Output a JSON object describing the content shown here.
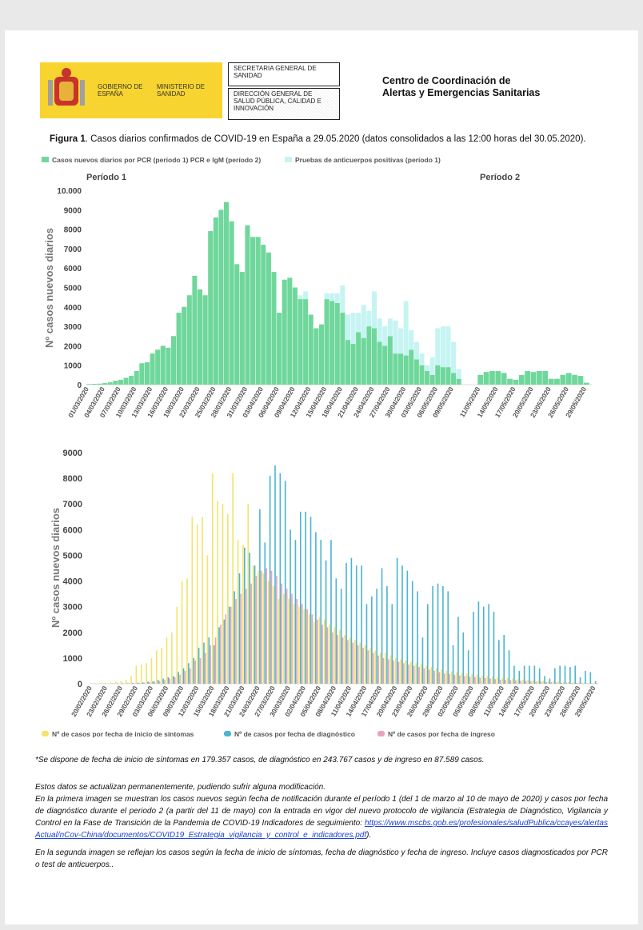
{
  "header": {
    "gov": "GOBIERNO DE ESPAÑA",
    "ministry": "MINISTERIO DE SANIDAD",
    "secretaria": "SECRETARIA GENERAL DE SANIDAD",
    "direccion": "DIRECCIÓN GENERAL DE SALUD PÚBLICA, CALIDAD E INNOVACIÓN",
    "centro": "Centro de Coordinación de Alertas y Emergencias Sanitarias"
  },
  "figure": {
    "label": "Figura 1",
    "caption": ". Casos diarios confirmados de COVID-19 en España a 29.05.2020 (datos consolidados a las 12:00 horas del 30.05.2020)."
  },
  "chart_data": [
    {
      "type": "bar",
      "stacked": true,
      "y_label": "Nº casos nuevos diarios",
      "ylim": [
        0,
        10000
      ],
      "yticks": [
        0,
        1000,
        2000,
        3000,
        4000,
        5000,
        6000,
        7000,
        8000,
        9000,
        {
          "value": 10000,
          "label": "10.000"
        }
      ],
      "periods": [
        {
          "label": "Período 1",
          "categories": [
            "01/03/2020",
            null,
            null,
            "04/03/2020",
            null,
            null,
            "07/03/2020",
            null,
            null,
            "10/03/2020",
            null,
            null,
            "13/03/2020",
            null,
            null,
            "16/03/2020",
            null,
            null,
            "19/03/2020",
            null,
            null,
            "22/03/2020",
            null,
            null,
            "25/03/2020",
            null,
            null,
            "28/03/2020",
            null,
            null,
            "31/03/2020",
            null,
            null,
            "03/04/2020",
            null,
            null,
            "06/04/2020",
            null,
            null,
            "09/04/2020",
            null,
            null,
            "12/04/2020",
            null,
            null,
            "15/04/2020",
            null,
            null,
            "18/04/2020",
            null,
            null,
            "21/04/2020",
            null,
            null,
            "24/04/2020",
            null,
            null,
            "27/04/2020",
            null,
            null,
            "30/04/2020",
            null,
            null,
            "03/05/2020",
            null,
            null,
            "06/05/2020",
            null,
            null,
            "09/05/2020",
            null
          ]
        },
        {
          "label": "Período 2",
          "categories": [
            "11/05/2020",
            null,
            null,
            "14/05/2020",
            null,
            null,
            "17/05/2020",
            null,
            null,
            "20/05/2020",
            null,
            null,
            "23/05/2020",
            null,
            null,
            "26/05/2020",
            null,
            null,
            "29/05/2020"
          ]
        }
      ],
      "series": [
        {
          "name": "Casos nuevos diarios por PCR (período 1) PCR e IgM (período 2)",
          "color": "#6fd79b",
          "values": [
            30,
            40,
            50,
            80,
            120,
            200,
            250,
            350,
            450,
            700,
            1100,
            1150,
            1600,
            1800,
            2000,
            1900,
            2500,
            3700,
            4000,
            4600,
            5600,
            4900,
            4600,
            7900,
            8600,
            9000,
            9400,
            8400,
            6200,
            5800,
            8200,
            7600,
            7600,
            7200,
            6800,
            5800,
            3700,
            5400,
            5500,
            5000,
            4400,
            4400,
            3600,
            2900,
            3100,
            4400,
            4300,
            4200,
            3700,
            2300,
            2100,
            2700,
            2400,
            3000,
            2900,
            2200,
            2000,
            2500,
            1600,
            1600,
            1500,
            1800,
            1300,
            1000,
            700,
            500,
            1000,
            900,
            900,
            600,
            300,
            500,
            650,
            700,
            700,
            600,
            300,
            250,
            500,
            700,
            650,
            700,
            700,
            300,
            300,
            500,
            600,
            500,
            450,
            100
          ]
        },
        {
          "name": "Pruebas de anticuerpos positivas (período 1)",
          "color": "#c6f4f3",
          "values": [
            0,
            0,
            0,
            0,
            0,
            0,
            0,
            0,
            0,
            0,
            0,
            0,
            0,
            0,
            0,
            0,
            0,
            0,
            0,
            0,
            0,
            0,
            0,
            0,
            0,
            0,
            0,
            0,
            0,
            0,
            0,
            0,
            0,
            0,
            0,
            0,
            0,
            0,
            0,
            0,
            200,
            400,
            0,
            0,
            0,
            300,
            400,
            500,
            1400,
            1300,
            1600,
            1000,
            1700,
            800,
            1900,
            1200,
            1000,
            900,
            1700,
            1300,
            2800,
            1000,
            900,
            600,
            300,
            900,
            1900,
            2100,
            2100,
            1600,
            500,
            0,
            0,
            0,
            0,
            0,
            0,
            0,
            0,
            0,
            0,
            0,
            0,
            0,
            0,
            0,
            0,
            0,
            0,
            0
          ]
        }
      ]
    },
    {
      "type": "bar",
      "stacked": false,
      "y_label": "Nº casos nuevos diarios",
      "ylim": [
        0,
        9000
      ],
      "yticks": [
        0,
        1000,
        2000,
        3000,
        4000,
        5000,
        6000,
        7000,
        8000,
        9000
      ],
      "categories": [
        "20/02/2020",
        null,
        null,
        "23/02/2020",
        null,
        null,
        "26/02/2020",
        null,
        null,
        "29/02/2020",
        null,
        null,
        "03/03/2020",
        null,
        null,
        "06/03/2020",
        null,
        null,
        "09/03/2020",
        null,
        null,
        "12/03/2020",
        null,
        null,
        "15/03/2020",
        null,
        null,
        "18/03/2020",
        null,
        null,
        "21/03/2020",
        null,
        null,
        "24/03/2020",
        null,
        null,
        "27/03/2020",
        null,
        null,
        "30/03/2020",
        null,
        null,
        "02/04/2020",
        null,
        null,
        "05/04/2020",
        null,
        null,
        "08/04/2020",
        null,
        null,
        "11/04/2020",
        null,
        null,
        "14/04/2020",
        null,
        null,
        "17/04/2020",
        null,
        null,
        "20/04/2020",
        null,
        null,
        "23/04/2020",
        null,
        null,
        "26/04/2020",
        null,
        null,
        "29/04/2020",
        null,
        null,
        "02/05/2020",
        null,
        null,
        "05/05/2020",
        null,
        null,
        "08/05/2020",
        null,
        null,
        "11/05/2020",
        null,
        null,
        "14/05/2020",
        null,
        null,
        "17/05/2020",
        null,
        null,
        "20/05/2020",
        null,
        null,
        "23/05/2020",
        null,
        null,
        "26/05/2020",
        null,
        null,
        "29/05/2020"
      ],
      "series": [
        {
          "name": "Nº de casos por fecha de inicio de síntomas",
          "color": "#f3e36b",
          "values": [
            20,
            20,
            30,
            40,
            50,
            80,
            100,
            150,
            300,
            700,
            750,
            800,
            1000,
            1300,
            1400,
            1800,
            2000,
            3000,
            4000,
            4100,
            6500,
            6200,
            6500,
            5000,
            8200,
            7100,
            7000,
            6600,
            8200,
            5600,
            5400,
            7000,
            4600,
            4400,
            4300,
            4000,
            3800,
            3300,
            3500,
            3300,
            3100,
            3000,
            2900,
            2700,
            2400,
            2600,
            2500,
            2300,
            2200,
            2100,
            1900,
            1800,
            1700,
            1600,
            1500,
            1400,
            1300,
            1200,
            1200,
            1100,
            1000,
            950,
            900,
            850,
            800,
            750,
            700,
            650,
            600,
            550,
            500,
            480,
            450,
            420,
            400,
            380,
            350,
            330,
            300,
            280,
            260,
            240,
            220,
            200,
            180,
            160,
            150,
            140,
            130,
            120,
            110,
            100,
            90,
            80,
            70,
            60,
            50,
            40,
            30,
            20
          ]
        },
        {
          "name": "Nº de casos por fecha de diagnóstico",
          "color": "#4bb5d0",
          "values": [
            0,
            0,
            0,
            0,
            10,
            10,
            20,
            20,
            30,
            40,
            50,
            80,
            100,
            150,
            200,
            250,
            300,
            450,
            600,
            800,
            1000,
            1400,
            1600,
            1800,
            1500,
            2200,
            2500,
            3000,
            3600,
            4300,
            5300,
            5100,
            4600,
            6800,
            5500,
            8100,
            8500,
            8200,
            7900,
            6000,
            5600,
            6700,
            6700,
            6500,
            5900,
            5600,
            4800,
            5600,
            4100,
            3700,
            4700,
            4900,
            4600,
            4600,
            3100,
            3400,
            3700,
            4500,
            3800,
            3100,
            4900,
            4600,
            4400,
            4000,
            3600,
            1800,
            3100,
            3800,
            3900,
            3800,
            3600,
            1500,
            2600,
            2000,
            1300,
            2800,
            3200,
            3000,
            3100,
            2800,
            1700,
            1900,
            1300,
            700,
            500,
            700,
            700,
            700,
            600,
            300,
            200,
            600,
            700,
            700,
            650,
            700,
            250,
            500,
            450,
            100
          ]
        },
        {
          "name": "Nº de casos por fecha de ingreso",
          "color": "#eca1b7",
          "values": [
            0,
            0,
            0,
            0,
            0,
            10,
            10,
            20,
            20,
            30,
            40,
            60,
            80,
            100,
            150,
            200,
            250,
            350,
            500,
            600,
            900,
            1000,
            1200,
            1500,
            1800,
            2300,
            2700,
            3000,
            3300,
            3500,
            3700,
            3900,
            4200,
            4400,
            4500,
            4400,
            4200,
            3900,
            3700,
            3500,
            3300,
            3100,
            2900,
            2700,
            2500,
            2300,
            2200,
            2000,
            1900,
            1800,
            1700,
            1600,
            1500,
            1400,
            1300,
            1200,
            1100,
            1000,
            950,
            900,
            850,
            800,
            750,
            700,
            650,
            600,
            550,
            500,
            450,
            400,
            380,
            350,
            320,
            300,
            280,
            260,
            240,
            220,
            200,
            180,
            160,
            150,
            140,
            130,
            120,
            110,
            100,
            90,
            80,
            70,
            60,
            50,
            40,
            40,
            30,
            30,
            20,
            20,
            10,
            10
          ]
        }
      ]
    }
  ],
  "notes": {
    "footnote": "*Se dispone de fecha de inicio de síntomas en 179.357 casos, de diagnóstico en 243.767 casos y de ingreso en 87.589 casos.",
    "p1": "Estos datos se actualizan permanentemente, pudiendo sufrir alguna modificación.",
    "p2": "En la primera imagen se muestran los casos nuevos según fecha de notificación durante el período 1 (del 1 de marzo al 10 de mayo de 2020) y casos por fecha de diagnóstico durante el periodo 2 (a partir del 11 de mayo) con la entrada en vigor del nuevo protocolo de vigilancia (Estrategia de Diagnóstico, Vigilancia y Control en la Fase de Transición de la Pandemia de COVID-19 Indicadores de seguimiento:",
    "link": "https://www.mscbs.gob.es/profesionales/saludPublica/ccayes/alertasActual/nCov-China/documentos/COVID19_Estrategia_vigilancia_y_control_e_indicadores.pdf",
    "p2_end": ").",
    "p3": "En la segunda imagen se reflejan los casos según la fecha de inicio de síntomas, fecha de diagnóstico y fecha de ingreso. Incluye casos diagnosticados por PCR o test de anticuerpos.."
  }
}
